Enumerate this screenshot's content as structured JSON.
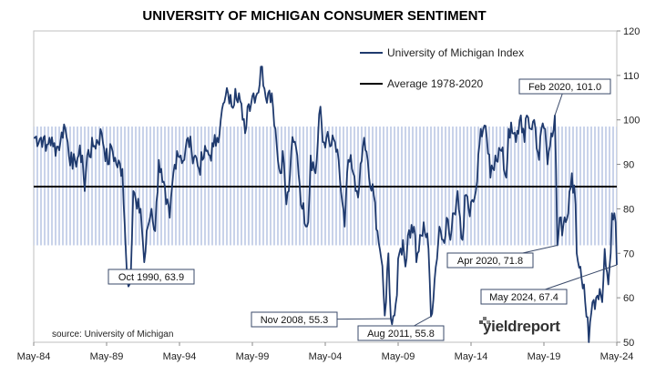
{
  "chart_data": {
    "type": "line",
    "title": "UNIVERSITY OF MICHIGAN CONSUMER SENTIMENT",
    "xlabel": "",
    "ylabel": "",
    "ylim": [
      50,
      120
    ],
    "yticks": [
      50,
      60,
      70,
      80,
      90,
      100,
      110,
      120
    ],
    "xtick_labels": [
      "May-84",
      "May-89",
      "May-94",
      "May-99",
      "May-04",
      "May-09",
      "May-14",
      "May-19",
      "May-24"
    ],
    "xlim": [
      "1984-05",
      "2024-05"
    ],
    "grid": false,
    "legend_position": "top",
    "series": [
      {
        "name": "University of Michigan Index",
        "color": "#1f3a6e",
        "points": [
          [
            "1984-05",
            96
          ],
          [
            "1985-01",
            96
          ],
          [
            "1985-03",
            93
          ],
          [
            "1985-06",
            96
          ],
          [
            "1985-09",
            94
          ],
          [
            "1986-01",
            94
          ],
          [
            "1986-03",
            95
          ],
          [
            "1986-06",
            99
          ],
          [
            "1986-09",
            95
          ],
          [
            "1987-01",
            89
          ],
          [
            "1987-03",
            91
          ],
          [
            "1987-06",
            92
          ],
          [
            "1987-09",
            92
          ],
          [
            "1987-11",
            84
          ],
          [
            "1988-01",
            92
          ],
          [
            "1988-06",
            94
          ],
          [
            "1989-01",
            97
          ],
          [
            "1989-06",
            90
          ],
          [
            "1989-09",
            94
          ],
          [
            "1990-01",
            90
          ],
          [
            "1990-06",
            89
          ],
          [
            "1990-08",
            76
          ],
          [
            "1990-10",
            63.9
          ],
          [
            "1991-01",
            66
          ],
          [
            "1991-03",
            84
          ],
          [
            "1991-06",
            80
          ],
          [
            "1991-09",
            80
          ],
          [
            "1991-12",
            68
          ],
          [
            "1992-03",
            76
          ],
          [
            "1992-06",
            80
          ],
          [
            "1992-09",
            75
          ],
          [
            "1992-12",
            91
          ],
          [
            "1993-03",
            86
          ],
          [
            "1993-06",
            81
          ],
          [
            "1993-09",
            78
          ],
          [
            "1993-12",
            88
          ],
          [
            "1994-03",
            93
          ],
          [
            "1994-06",
            92
          ],
          [
            "1994-09",
            91
          ],
          [
            "1994-12",
            96
          ],
          [
            "1995-03",
            93
          ],
          [
            "1995-06",
            92
          ],
          [
            "1995-09",
            89
          ],
          [
            "1995-12",
            91
          ],
          [
            "1996-03",
            93
          ],
          [
            "1996-06",
            92
          ],
          [
            "1996-09",
            94
          ],
          [
            "1996-12",
            96
          ],
          [
            "1997-03",
            100
          ],
          [
            "1997-06",
            104
          ],
          [
            "1997-09",
            106
          ],
          [
            "1997-12",
            103
          ],
          [
            "1998-03",
            107
          ],
          [
            "1998-06",
            106
          ],
          [
            "1998-09",
            100
          ],
          [
            "1998-11",
            97
          ],
          [
            "1999-01",
            103
          ],
          [
            "1999-06",
            106
          ],
          [
            "1999-09",
            106
          ],
          [
            "2000-01",
            112
          ],
          [
            "2000-03",
            107
          ],
          [
            "2000-06",
            106
          ],
          [
            "2000-09",
            106
          ],
          [
            "2000-12",
            98
          ],
          [
            "2001-02",
            91
          ],
          [
            "2001-04",
            88
          ],
          [
            "2001-06",
            93
          ],
          [
            "2001-09",
            81
          ],
          [
            "2001-11",
            84
          ],
          [
            "2002-01",
            93
          ],
          [
            "2002-03",
            95
          ],
          [
            "2002-06",
            92
          ],
          [
            "2002-10",
            80
          ],
          [
            "2003-03",
            77
          ],
          [
            "2003-05",
            92
          ],
          [
            "2003-09",
            88
          ],
          [
            "2004-01",
            103
          ],
          [
            "2004-03",
            95
          ],
          [
            "2004-06",
            96
          ],
          [
            "2004-09",
            94
          ],
          [
            "2005-01",
            95
          ],
          [
            "2005-05",
            87
          ],
          [
            "2005-09",
            76
          ],
          [
            "2005-12",
            91
          ],
          [
            "2006-03",
            89
          ],
          [
            "2006-06",
            84
          ],
          [
            "2006-09",
            85
          ],
          [
            "2007-01",
            96
          ],
          [
            "2007-06",
            85
          ],
          [
            "2007-09",
            83
          ],
          [
            "2007-12",
            75
          ],
          [
            "2008-03",
            69
          ],
          [
            "2008-06",
            56
          ],
          [
            "2008-09",
            70
          ],
          [
            "2008-11",
            55.3
          ],
          [
            "2009-02",
            56
          ],
          [
            "2009-06",
            70
          ],
          [
            "2009-09",
            73
          ],
          [
            "2009-11",
            67
          ],
          [
            "2010-01",
            74
          ],
          [
            "2010-06",
            76
          ],
          [
            "2010-08",
            68
          ],
          [
            "2010-12",
            74
          ],
          [
            "2011-02",
            77
          ],
          [
            "2011-06",
            71
          ],
          [
            "2011-08",
            55.8
          ],
          [
            "2011-11",
            64
          ],
          [
            "2012-03",
            76
          ],
          [
            "2012-06",
            73
          ],
          [
            "2012-09",
            78
          ],
          [
            "2012-12",
            73
          ],
          [
            "2013-03",
            79
          ],
          [
            "2013-06",
            84
          ],
          [
            "2013-10",
            73
          ],
          [
            "2013-12",
            83
          ],
          [
            "2014-03",
            80
          ],
          [
            "2014-06",
            82
          ],
          [
            "2014-09",
            84
          ],
          [
            "2015-01",
            98
          ],
          [
            "2015-06",
            96
          ],
          [
            "2015-09",
            87
          ],
          [
            "2016-01",
            92
          ],
          [
            "2016-06",
            93
          ],
          [
            "2016-10",
            87
          ],
          [
            "2016-12",
            98
          ],
          [
            "2017-03",
            97
          ],
          [
            "2017-06",
            95
          ],
          [
            "2017-10",
            101
          ],
          [
            "2018-01",
            95
          ],
          [
            "2018-03",
            101
          ],
          [
            "2018-06",
            98
          ],
          [
            "2018-09",
            100
          ],
          [
            "2019-01",
            91
          ],
          [
            "2019-03",
            98
          ],
          [
            "2019-06",
            98
          ],
          [
            "2019-08",
            90
          ],
          [
            "2019-11",
            97
          ],
          [
            "2020-02",
            101
          ],
          [
            "2020-03",
            89
          ],
          [
            "2020-04",
            71.8
          ],
          [
            "2020-06",
            78
          ],
          [
            "2020-08",
            74
          ],
          [
            "2020-11",
            77
          ],
          [
            "2021-01",
            79
          ],
          [
            "2021-04",
            88
          ],
          [
            "2021-07",
            81
          ],
          [
            "2021-08",
            70
          ],
          [
            "2021-11",
            67
          ],
          [
            "2022-02",
            63
          ],
          [
            "2022-06",
            50
          ],
          [
            "2022-09",
            59
          ],
          [
            "2022-12",
            60
          ],
          [
            "2023-03",
            62
          ],
          [
            "2023-05",
            59
          ],
          [
            "2023-07",
            71
          ],
          [
            "2023-10",
            63
          ],
          [
            "2023-12",
            70
          ],
          [
            "2024-01",
            79
          ],
          [
            "2024-03",
            79
          ],
          [
            "2024-04",
            77
          ],
          [
            "2024-05",
            67.4
          ]
        ]
      },
      {
        "name": "Average 1978-2020",
        "color": "#000000",
        "values": [
          85,
          85
        ]
      }
    ],
    "band": {
      "y_from": 71.8,
      "y_to": 98.5,
      "color": "#c9d3ea"
    },
    "annotations": [
      {
        "text": "Oct 1990, 63.9",
        "x": "1990-10",
        "y": 63.9
      },
      {
        "text": "Nov 2008, 55.3",
        "x": "2008-11",
        "y": 55.3
      },
      {
        "text": "Aug 2011, 55.8",
        "x": "2011-08",
        "y": 55.8
      },
      {
        "text": "Feb 2020, 101.0",
        "x": "2020-02",
        "y": 101.0
      },
      {
        "text": "Apr 2020, 71.8",
        "x": "2020-04",
        "y": 71.8
      },
      {
        "text": "May 2024, 67.4",
        "x": "2024-05",
        "y": 67.4
      }
    ],
    "source": "source: University of Michigan",
    "brand": "yieldreport"
  }
}
